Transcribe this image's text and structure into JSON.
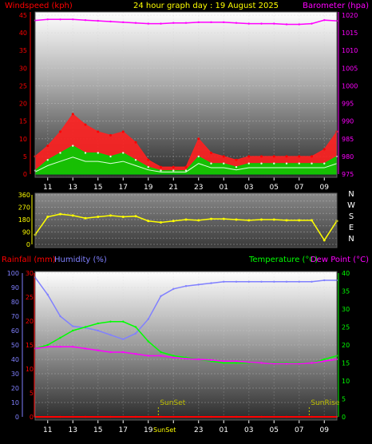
{
  "header": {
    "windspeed_label": "Windspeed (kph)",
    "title": "24 hour graph day : 19 August 2025",
    "barometer_label": "Barometer (hpa)"
  },
  "colors": {
    "windspeed": "#ff0000",
    "gust_fill": "#ff2020",
    "avg_fill": "#00d000",
    "avg_line": "#e0ffe0",
    "barometer": "#ff00ff",
    "direction": "#ffff00",
    "rainfall": "#ff0000",
    "humidity": "#8080ff",
    "temperature": "#00ff00",
    "dewpoint": "#ff00ff",
    "event": "#c0c000"
  },
  "x_ticks": [
    "11",
    "13",
    "15",
    "17",
    "19",
    "21",
    "23",
    "01",
    "03",
    "05",
    "07",
    "09"
  ],
  "compass": [
    "N",
    "W",
    "S",
    "E",
    "N"
  ],
  "lower_header": {
    "rainfall_label": "Rainfall (mm)",
    "humidity_label": "Humidity (%)",
    "temperature_label": "Temperature (°C)",
    "dewpoint_label": "Dew Point (°C)"
  },
  "events": {
    "sunset": "SunSet",
    "sunrise": "SunRise"
  },
  "bottom_tick_sunset": "SunSet",
  "chart_data": [
    {
      "type": "area",
      "title": "24 hour graph day : 19 August 2025",
      "xlabel": "",
      "ylabel": "Windspeed (kph)",
      "y2label": "Barometer (hpa)",
      "ylim": [
        0,
        45
      ],
      "y_ticks": [
        0,
        5,
        10,
        15,
        20,
        25,
        30,
        35,
        40,
        45
      ],
      "y2lim": [
        975,
        1020
      ],
      "y2_ticks": [
        975,
        980,
        985,
        990,
        995,
        1000,
        1005,
        1010,
        1015,
        1020
      ],
      "x": [
        10,
        11,
        12,
        13,
        14,
        15,
        16,
        17,
        18,
        19,
        20,
        21,
        22,
        23,
        24,
        25,
        26,
        27,
        28,
        29,
        30,
        31,
        32,
        33,
        34
      ],
      "series": [
        {
          "name": "Windspeed (kph)",
          "kind": "gust",
          "values": [
            5,
            8,
            12,
            17,
            14,
            12,
            11,
            12,
            9,
            4,
            2,
            2,
            2,
            10,
            6,
            5,
            4,
            5,
            5,
            5,
            5,
            5,
            5,
            7,
            12
          ]
        },
        {
          "name": "Windspeed (kph)",
          "kind": "average",
          "values": [
            1,
            4,
            6,
            8,
            6,
            6,
            5,
            6,
            4,
            2,
            1,
            1,
            1,
            5,
            3,
            3,
            2,
            3,
            3,
            3,
            3,
            3,
            3,
            3,
            5
          ]
        },
        {
          "name": "Barometer (hpa)",
          "values": [
            1018.5,
            1018.8,
            1018.8,
            1018.8,
            1018.6,
            1018.4,
            1018.2,
            1018,
            1017.8,
            1017.6,
            1017.6,
            1017.8,
            1017.8,
            1018,
            1018,
            1018,
            1017.8,
            1017.6,
            1017.6,
            1017.6,
            1017.4,
            1017.4,
            1017.6,
            1018.6,
            1018.4
          ]
        }
      ]
    },
    {
      "type": "line",
      "title": "",
      "ylabel": "",
      "ylim": [
        0,
        360
      ],
      "y_ticks": [
        0,
        45,
        90,
        135,
        180,
        225,
        270,
        315,
        360
      ],
      "x": [
        10,
        11,
        12,
        13,
        14,
        15,
        16,
        17,
        18,
        19,
        20,
        21,
        22,
        23,
        24,
        25,
        26,
        27,
        28,
        29,
        30,
        31,
        32,
        33,
        34
      ],
      "series": [
        {
          "name": "",
          "values": [
            70,
            200,
            220,
            210,
            190,
            200,
            210,
            200,
            205,
            170,
            160,
            170,
            180,
            175,
            185,
            185,
            180,
            175,
            180,
            180,
            175,
            175,
            175,
            30,
            170
          ]
        }
      ]
    },
    {
      "type": "line",
      "title": "",
      "ylabel": "Rainfall (mm) / Humidity (%)",
      "y2label": "Temperature (°C) / Dew Point (°C)",
      "ylim": [
        0,
        100
      ],
      "y_ticks": [
        0,
        10,
        20,
        30,
        40,
        50,
        60,
        70,
        80,
        90,
        100
      ],
      "rain_ticks": [
        0,
        5,
        10,
        15,
        20,
        25,
        30
      ],
      "y2lim": [
        0,
        40
      ],
      "y2_ticks": [
        0,
        5,
        10,
        15,
        20,
        25,
        30,
        35,
        40
      ],
      "x": [
        10,
        11,
        12,
        13,
        14,
        15,
        16,
        17,
        18,
        19,
        20,
        21,
        22,
        23,
        24,
        25,
        26,
        27,
        28,
        29,
        30,
        31,
        32,
        33,
        34
      ],
      "series": [
        {
          "name": "Rainfall (mm)",
          "axis": "rain",
          "values": [
            0,
            0,
            0,
            0,
            0,
            0,
            0,
            0,
            0,
            0,
            0,
            0,
            0,
            0,
            0,
            0,
            0,
            0,
            0,
            0,
            0,
            0,
            0,
            0,
            0
          ]
        },
        {
          "name": "Humidity (%)",
          "axis": "left",
          "values": [
            97,
            85,
            70,
            63,
            62,
            60,
            57,
            54,
            58,
            68,
            84,
            89,
            91,
            92,
            93,
            94,
            94,
            94,
            94,
            94,
            94,
            94,
            94,
            95,
            95
          ]
        },
        {
          "name": "Temperature (°C)",
          "axis": "right",
          "values": [
            19,
            20,
            22,
            24,
            25,
            26,
            26.5,
            26.5,
            25,
            21,
            18,
            17,
            16.5,
            16,
            15.5,
            15,
            15,
            15,
            15,
            15,
            15,
            15,
            15,
            16,
            17
          ]
        },
        {
          "name": "Dew Point (°C)",
          "axis": "right",
          "values": [
            19,
            19.5,
            19.5,
            19.5,
            19,
            18.5,
            18,
            18,
            17.5,
            17,
            17,
            16.5,
            16.2,
            16,
            15.8,
            15.5,
            15.5,
            15.2,
            15,
            14.8,
            14.8,
            14.8,
            15,
            15.5,
            16
          ]
        }
      ]
    }
  ]
}
